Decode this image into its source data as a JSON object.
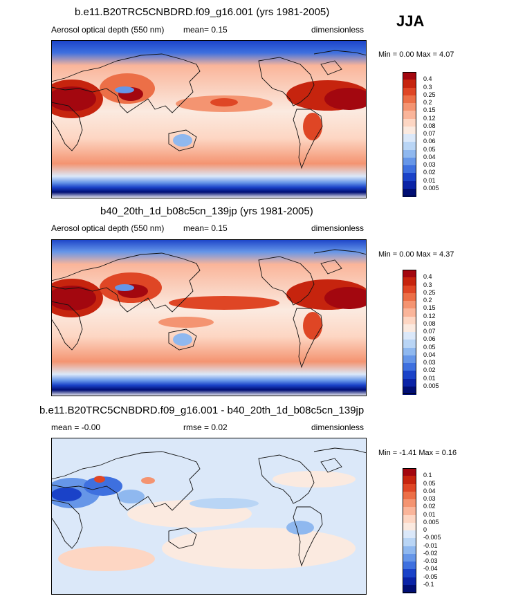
{
  "season": "JJA",
  "variable_name": "Aerosol optical depth (550 nm)",
  "units": "dimensionless",
  "panels": [
    {
      "title": "b.e11.B20TRC5CNBDRD.f09_g16.001 (yrs 1981-2005)",
      "variable": "Aerosol optical depth (550 nm)",
      "mean_text": "mean=  0.15",
      "units": "dimensionless",
      "minmax_text": "Min =  0.00 Max =  4.07",
      "levels": [
        "0.4",
        "0.3",
        "0.25",
        "0.2",
        "0.15",
        "0.12",
        "0.08",
        "0.07",
        "0.06",
        "0.05",
        "0.04",
        "0.03",
        "0.02",
        "0.01",
        "0.005"
      ]
    },
    {
      "title": "b40_20th_1d_b08c5cn_139jp (yrs 1981-2005)",
      "variable": "Aerosol optical depth (550 nm)",
      "mean_text": "mean=  0.15",
      "units": "dimensionless",
      "minmax_text": "Min =  0.00 Max =  4.37",
      "levels": [
        "0.4",
        "0.3",
        "0.25",
        "0.2",
        "0.15",
        "0.12",
        "0.08",
        "0.07",
        "0.06",
        "0.05",
        "0.04",
        "0.03",
        "0.02",
        "0.01",
        "0.005"
      ]
    },
    {
      "title": "b.e11.B20TRC5CNBDRD.f09_g16.001 - b40_20th_1d_b08c5cn_139jp",
      "mean_text": "mean =  -0.00",
      "rmse_text": "rmse =  0.02",
      "units": "dimensionless",
      "minmax_text": "Min =  -1.41 Max =  0.16",
      "levels": [
        "0.1",
        "0.05",
        "0.04",
        "0.03",
        "0.02",
        "0.01",
        "0.005",
        "0",
        "-0.005",
        "-0.01",
        "-0.02",
        "-0.03",
        "-0.04",
        "-0.05",
        "-0.1"
      ]
    }
  ],
  "colors": {
    "abs_scale": [
      "#a3070f",
      "#c6240e",
      "#df4625",
      "#ec6f47",
      "#f49471",
      "#fab59a",
      "#fdd6c3",
      "#fbeae0",
      "#dbe8f9",
      "#b9d5f5",
      "#8fb8ef",
      "#6696e8",
      "#3e70df",
      "#1a42c8",
      "#0a23a6",
      "#000e74"
    ],
    "diff_scale": [
      "#a3070f",
      "#c6240e",
      "#df4625",
      "#ec6f47",
      "#f49471",
      "#fab59a",
      "#fdd6c3",
      "#fbeae0",
      "#dbe8f9",
      "#b9d5f5",
      "#8fb8ef",
      "#6696e8",
      "#3e70df",
      "#1a42c8",
      "#0a23a6",
      "#000e74"
    ]
  }
}
